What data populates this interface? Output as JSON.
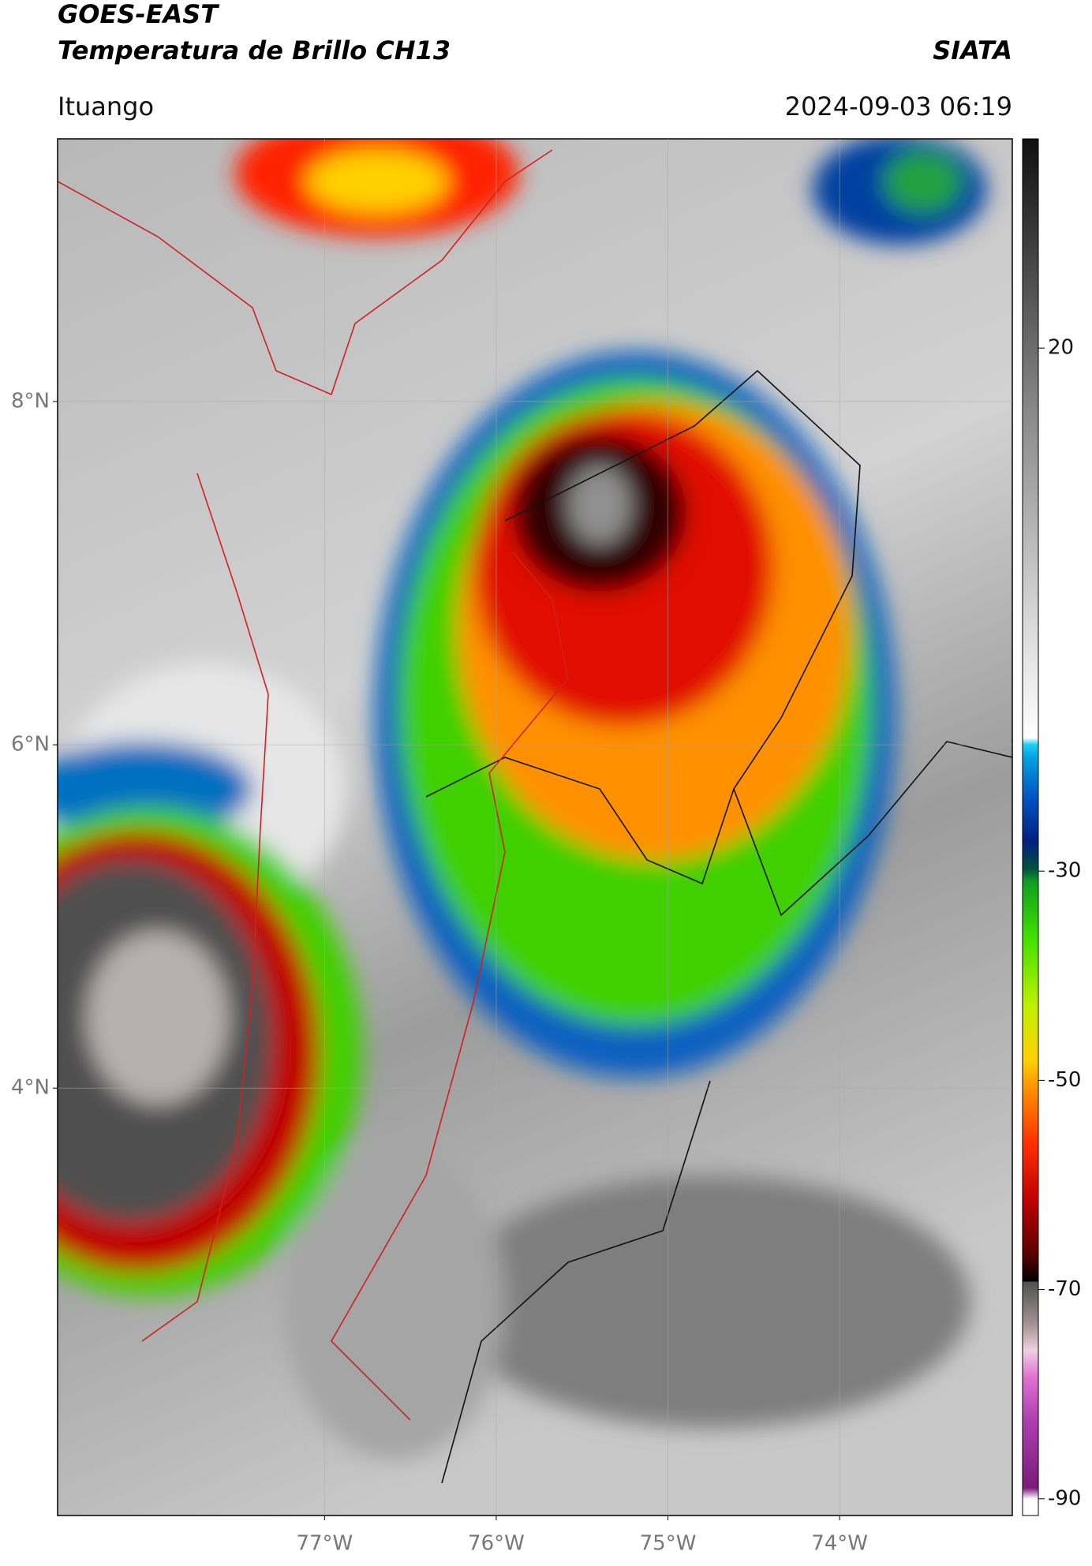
{
  "header": {
    "title": "GOES-EAST",
    "subtitle": "Temperatura de Brillo CH13",
    "source": "SIATA",
    "location": "Ituango",
    "datetime": "2024-09-03 06:19"
  },
  "map": {
    "type": "map",
    "xlim": [
      -78.555,
      -72.994
    ],
    "ylim": [
      1.51,
      9.53
    ],
    "xticks": [
      {
        "value": -77,
        "label": "77°W"
      },
      {
        "value": -76,
        "label": "76°W"
      },
      {
        "value": -75,
        "label": "75°W"
      },
      {
        "value": -74,
        "label": "74°W"
      }
    ],
    "yticks": [
      {
        "value": 8,
        "label": "8°N"
      },
      {
        "value": 6,
        "label": "6°N"
      },
      {
        "value": 4,
        "label": "4°N"
      }
    ],
    "grid": true,
    "colorbar": {
      "lim": [
        -91.6,
        40
      ],
      "ticks": [
        20,
        -30,
        -50,
        -70,
        -90
      ]
    }
  }
}
